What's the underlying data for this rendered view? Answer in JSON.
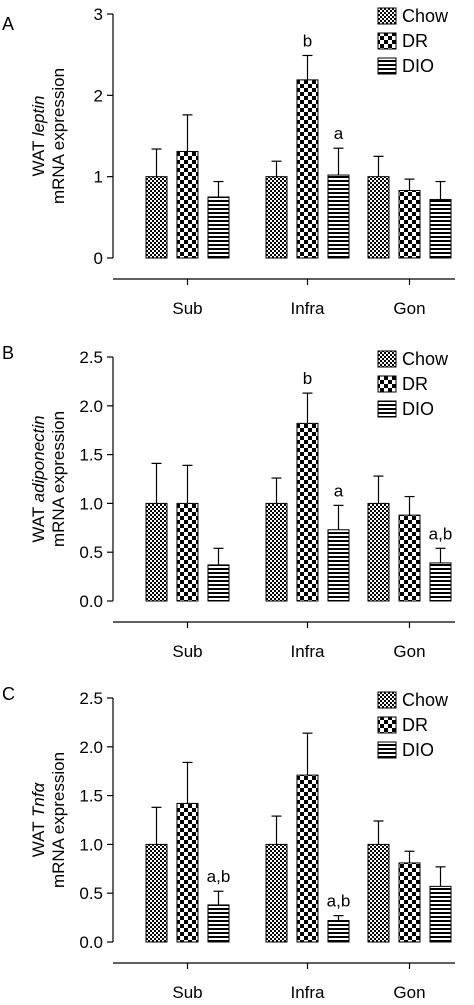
{
  "chart_data": [
    {
      "panel_label": "A",
      "type": "bar",
      "ylabel_prefix": "WAT ",
      "ylabel_gene": "leptin",
      "ylabel_line2": "mRNA expression",
      "ylim": [
        0,
        3
      ],
      "yticks": [
        "0",
        "1",
        "2",
        "3"
      ],
      "categories": [
        "Sub",
        "Infra",
        "Gon"
      ],
      "series": [
        {
          "name": "Chow",
          "pattern": "dense",
          "values": [
            1.0,
            1.0,
            1.0
          ],
          "errors": [
            0.34,
            0.19,
            0.25
          ],
          "labels": [
            "",
            "",
            ""
          ]
        },
        {
          "name": "DR",
          "pattern": "checker",
          "values": [
            1.31,
            2.19,
            0.83
          ],
          "errors": [
            0.45,
            0.3,
            0.14
          ],
          "labels": [
            "",
            "b",
            ""
          ]
        },
        {
          "name": "DIO",
          "pattern": "stripes",
          "values": [
            0.75,
            1.02,
            0.72
          ],
          "errors": [
            0.19,
            0.33,
            0.22
          ],
          "labels": [
            "",
            "a",
            ""
          ]
        }
      ],
      "legend_position": "top-right",
      "grid": false
    },
    {
      "panel_label": "B",
      "type": "bar",
      "ylabel_prefix": "WAT ",
      "ylabel_gene": "adiponectin",
      "ylabel_line2": "mRNA expression",
      "ylim": [
        0,
        2.5
      ],
      "yticks": [
        "0.0",
        "0.5",
        "1.0",
        "1.5",
        "2.0",
        "2.5"
      ],
      "categories": [
        "Sub",
        "Infra",
        "Gon"
      ],
      "series": [
        {
          "name": "Chow",
          "pattern": "dense",
          "values": [
            1.0,
            1.0,
            1.0
          ],
          "errors": [
            0.41,
            0.26,
            0.28
          ],
          "labels": [
            "",
            "",
            ""
          ]
        },
        {
          "name": "DR",
          "pattern": "checker",
          "values": [
            1.0,
            1.82,
            0.88
          ],
          "errors": [
            0.39,
            0.31,
            0.19
          ],
          "labels": [
            "",
            "b",
            ""
          ]
        },
        {
          "name": "DIO",
          "pattern": "stripes",
          "values": [
            0.37,
            0.73,
            0.39
          ],
          "errors": [
            0.17,
            0.25,
            0.15
          ],
          "labels": [
            "",
            "a",
            "a,b"
          ]
        }
      ],
      "legend_position": "top-right",
      "grid": false
    },
    {
      "panel_label": "C",
      "type": "bar",
      "ylabel_prefix": "WAT ",
      "ylabel_gene": "Tnfα",
      "ylabel_line2": "mRNA expression",
      "ylim": [
        0,
        2.5
      ],
      "yticks": [
        "0.0",
        "0.5",
        "1.0",
        "1.5",
        "2.0",
        "2.5"
      ],
      "categories": [
        "Sub",
        "Infra",
        "Gon"
      ],
      "series": [
        {
          "name": "Chow",
          "pattern": "dense",
          "values": [
            1.0,
            1.0,
            1.0
          ],
          "errors": [
            0.38,
            0.29,
            0.24
          ],
          "labels": [
            "",
            "",
            ""
          ]
        },
        {
          "name": "DR",
          "pattern": "checker",
          "values": [
            1.42,
            1.71,
            0.81
          ],
          "errors": [
            0.42,
            0.43,
            0.12
          ],
          "labels": [
            "",
            "",
            ""
          ]
        },
        {
          "name": "DIO",
          "pattern": "stripes",
          "values": [
            0.38,
            0.22,
            0.57
          ],
          "errors": [
            0.14,
            0.05,
            0.2
          ],
          "labels": [
            "a,b",
            "a,b",
            ""
          ]
        }
      ],
      "legend_position": "top-right",
      "grid": false
    }
  ]
}
